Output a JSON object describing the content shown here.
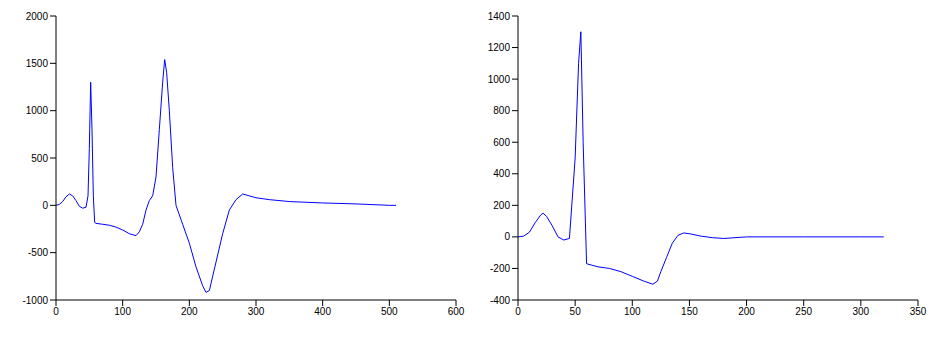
{
  "chart_data": [
    {
      "type": "line",
      "color": "#0000ff",
      "marker": "none",
      "grid": false,
      "x": [
        0,
        5,
        10,
        15,
        20,
        25,
        30,
        35,
        40,
        45,
        48,
        50,
        52,
        54,
        56,
        58,
        60,
        70,
        80,
        90,
        100,
        110,
        120,
        125,
        130,
        135,
        140,
        145,
        150,
        155,
        160,
        163,
        166,
        170,
        175,
        180,
        190,
        200,
        210,
        220,
        225,
        230,
        240,
        250,
        260,
        270,
        280,
        290,
        300,
        320,
        350,
        400,
        450,
        500,
        510
      ],
      "values": [
        0,
        10,
        40,
        90,
        120,
        100,
        50,
        -10,
        -30,
        -20,
        100,
        600,
        1300,
        800,
        100,
        -180,
        -190,
        -200,
        -210,
        -230,
        -260,
        -300,
        -320,
        -280,
        -200,
        -50,
        50,
        100,
        300,
        800,
        1300,
        1540,
        1400,
        1000,
        400,
        0,
        -200,
        -400,
        -650,
        -850,
        -920,
        -900,
        -600,
        -300,
        -50,
        60,
        120,
        100,
        80,
        60,
        40,
        25,
        15,
        0,
        0
      ],
      "xlim": [
        0,
        600
      ],
      "xticks": [
        0,
        100,
        200,
        300,
        400,
        500,
        600
      ],
      "ylim": [
        -1000,
        2000
      ],
      "yticks": [
        -1000,
        -500,
        0,
        500,
        1000,
        1500,
        2000
      ]
    },
    {
      "type": "line",
      "color": "#0000ff",
      "marker": "none",
      "grid": false,
      "x": [
        0,
        5,
        10,
        15,
        20,
        22,
        25,
        30,
        35,
        40,
        45,
        50,
        53,
        55,
        57,
        60,
        70,
        80,
        90,
        100,
        110,
        118,
        122,
        125,
        130,
        135,
        140,
        145,
        150,
        160,
        170,
        180,
        200,
        250,
        300,
        320
      ],
      "values": [
        0,
        5,
        30,
        90,
        140,
        150,
        130,
        70,
        0,
        -20,
        -10,
        500,
        1100,
        1300,
        600,
        -170,
        -190,
        -200,
        -220,
        -250,
        -280,
        -300,
        -280,
        -220,
        -130,
        -40,
        10,
        25,
        20,
        5,
        -5,
        -10,
        0,
        0,
        0,
        0
      ],
      "xlim": [
        0,
        350
      ],
      "xticks": [
        0,
        50,
        100,
        150,
        200,
        250,
        300,
        350
      ],
      "ylim": [
        -400,
        1400
      ],
      "yticks": [
        -400,
        -200,
        0,
        200,
        400,
        600,
        800,
        1000,
        1200,
        1400
      ]
    }
  ]
}
